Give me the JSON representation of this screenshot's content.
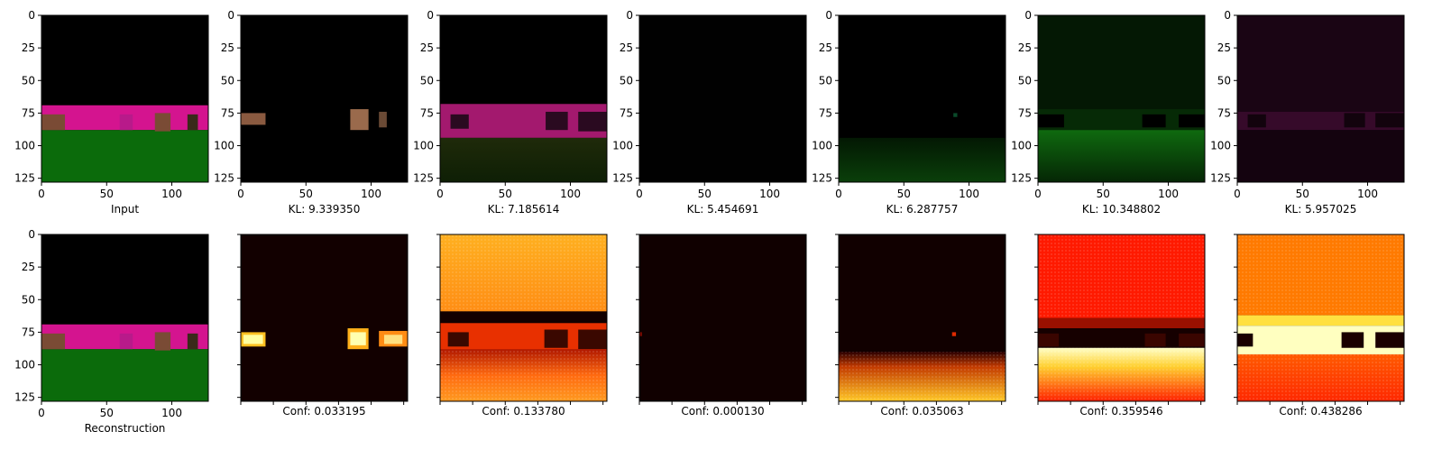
{
  "figure": {
    "x_ticks": [
      "0",
      "50",
      "100"
    ],
    "y_ticks": [
      "0",
      "25",
      "50",
      "75",
      "100",
      "125"
    ],
    "top_row": [
      {
        "caption": "Input",
        "kind": "input"
      },
      {
        "caption": "KL: 9.339350",
        "kind": "mask_objects"
      },
      {
        "caption": "KL: 7.185614",
        "kind": "mask_wall"
      },
      {
        "caption": "KL: 5.454691",
        "kind": "mask_empty"
      },
      {
        "caption": "KL: 6.287757",
        "kind": "mask_floor"
      },
      {
        "caption": "KL: 10.348802",
        "kind": "mask_green"
      },
      {
        "caption": "KL: 5.957025",
        "kind": "mask_purple"
      }
    ],
    "bottom_row": [
      {
        "caption": "Reconstruction",
        "kind": "input"
      },
      {
        "caption": "Conf: 0.033195",
        "kind": "heat_objects"
      },
      {
        "caption": "Conf: 0.133780",
        "kind": "heat_wall"
      },
      {
        "caption": "Conf: 0.000130",
        "kind": "heat_empty"
      },
      {
        "caption": "Conf: 0.035063",
        "kind": "heat_floor"
      },
      {
        "caption": "Conf: 0.359546",
        "kind": "heat_red"
      },
      {
        "caption": "Conf: 0.438286",
        "kind": "heat_orange"
      }
    ]
  }
}
